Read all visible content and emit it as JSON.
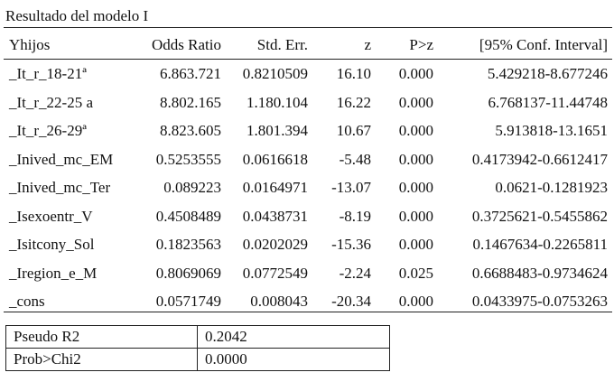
{
  "title": "Resultado del modelo I",
  "table": {
    "header": [
      "Yhijos",
      "Odds Ratio",
      "Std. Err.",
      "z",
      "P>z",
      "[95% Conf. Interval]"
    ],
    "rows": [
      [
        "_It_r_18-21ª",
        "6.863.721",
        "0.8210509",
        "16.10",
        "0.000",
        "5.429218-8.677246"
      ],
      [
        "_It_r_22-25 a",
        "8.802.165",
        "1.180.104",
        "16.22",
        "0.000",
        "6.768137-11.44748"
      ],
      [
        "_It_r_26-29ª",
        "8.823.605",
        "1.801.394",
        "10.67",
        "0.000",
        "5.913818-13.1651"
      ],
      [
        "_Inived_mc_EM",
        "0.5253555",
        "0.0616618",
        "-5.48",
        "0.000",
        "0.4173942-0.6612417"
      ],
      [
        "_Inived_mc_Ter",
        "0.089223",
        "0.0164971",
        "-13.07",
        "0.000",
        "0.0621-0.1281923"
      ],
      [
        "_Isexoentr_V",
        "0.4508489",
        "0.0438731",
        "-8.19",
        "0.000",
        "0.3725621-0.5455862"
      ],
      [
        "_Isitcony_Sol",
        "0.1823563",
        "0.0202029",
        "-15.36",
        "0.000",
        "0.1467634-0.2265811"
      ],
      [
        "_Iregion_e_M",
        "0.8069069",
        "0.0772549",
        "-2.24",
        "0.025",
        "0.6688483-0.9734624"
      ],
      [
        "_cons",
        "0.0571749",
        "0.008043",
        "-20.34",
        "0.000",
        "0.0433975-0.0753263"
      ]
    ]
  },
  "fit": [
    [
      "Pseudo R2",
      "0.2042"
    ],
    [
      "Prob>Chi2",
      "0.0000"
    ]
  ]
}
